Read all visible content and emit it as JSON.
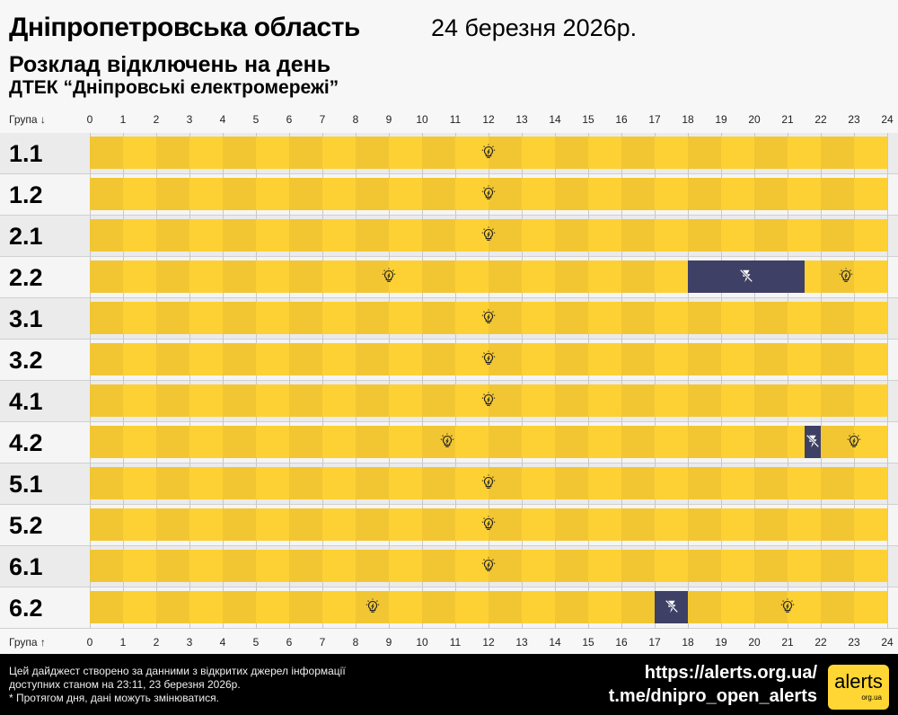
{
  "header": {
    "title": "Дніпропетровська область",
    "date": "24 березня 2026р.",
    "subtitle": "Розклад відключень на день",
    "provider": "ДТЕК “Дніпровські електромережі”"
  },
  "axis": {
    "top_label": "Група ↓",
    "bottom_label": "Група ↑"
  },
  "colors": {
    "on_dark": "#f2c633",
    "on_light": "#fdd134",
    "off": "#3f4065",
    "row_odd": "#ebebeb",
    "row_even": "#f5f5f5"
  },
  "chart_data": {
    "type": "timeline",
    "x_ticks": [
      0,
      1,
      2,
      3,
      4,
      5,
      6,
      7,
      8,
      9,
      10,
      11,
      12,
      13,
      14,
      15,
      16,
      17,
      18,
      19,
      20,
      21,
      22,
      23,
      24
    ],
    "xlim": [
      0,
      24
    ],
    "legend": {
      "on": "lightbulb-icon",
      "off": "no-power-icon"
    },
    "groups": [
      {
        "name": "1.1",
        "outages": []
      },
      {
        "name": "1.2",
        "outages": []
      },
      {
        "name": "2.1",
        "outages": []
      },
      {
        "name": "2.2",
        "outages": [
          [
            18,
            21.5
          ]
        ]
      },
      {
        "name": "3.1",
        "outages": []
      },
      {
        "name": "3.2",
        "outages": []
      },
      {
        "name": "4.1",
        "outages": []
      },
      {
        "name": "4.2",
        "outages": [
          [
            21.5,
            22
          ]
        ]
      },
      {
        "name": "5.1",
        "outages": []
      },
      {
        "name": "5.2",
        "outages": []
      },
      {
        "name": "6.1",
        "outages": []
      },
      {
        "name": "6.2",
        "outages": [
          [
            17,
            18
          ]
        ]
      }
    ]
  },
  "footer": {
    "note1": "Цей дайджест створено за данними з відкритих джерел інформації",
    "note2": "доступних станом на 23:11, 23 березня 2026р.",
    "note3": "* Протягом дня, дані можуть змінюватися.",
    "link1": "https://alerts.org.ua/",
    "link2": "t.me/dnipro_open_alerts",
    "logo": "alerts",
    "logo_sub": "org.ua"
  }
}
